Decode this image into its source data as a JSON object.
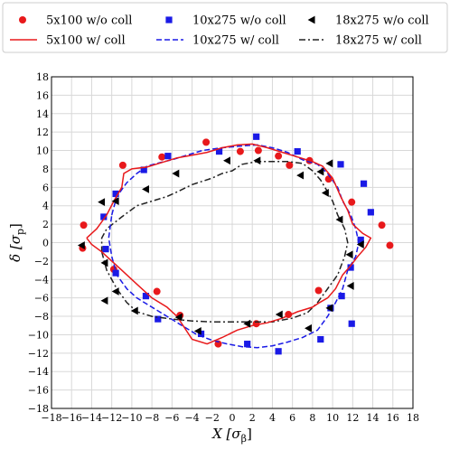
{
  "chart_data": {
    "type": "scatter",
    "xlabel": "X [σ_β]",
    "ylabel": "δ [σ_p]",
    "xlim": [
      -18,
      18
    ],
    "ylim": [
      -18,
      18
    ],
    "xticks": [
      -18,
      -16,
      -14,
      -12,
      -10,
      -8,
      -6,
      -4,
      -2,
      0,
      2,
      4,
      6,
      8,
      10,
      12,
      14,
      16,
      18
    ],
    "yticks": [
      -18,
      -16,
      -14,
      -12,
      -10,
      -8,
      -6,
      -4,
      -2,
      0,
      2,
      4,
      6,
      8,
      10,
      12,
      14,
      16,
      18
    ],
    "xlabel_parts": {
      "main": "X [σ",
      "sub": "β",
      "close": "]"
    },
    "ylabel_parts": {
      "main": "δ [σ",
      "sub": "p",
      "close": "]"
    },
    "grid": true,
    "legend": {
      "position": "top",
      "columns": 3
    },
    "series": [
      {
        "name": "5x100 w/o coll",
        "kind": "scatter",
        "marker": "circle",
        "color": "#e8191b",
        "points": [
          [
            -14.9,
            -0.6
          ],
          [
            -14.8,
            1.9
          ],
          [
            -11.8,
            -2.9
          ],
          [
            -10.9,
            8.4
          ],
          [
            -7.5,
            -5.3
          ],
          [
            -7,
            9.3
          ],
          [
            -5.2,
            -7.9
          ],
          [
            -2.6,
            10.9
          ],
          [
            -1.4,
            -11
          ],
          [
            0.8,
            9.9
          ],
          [
            2.4,
            -8.8
          ],
          [
            2.6,
            10
          ],
          [
            4.6,
            9.4
          ],
          [
            5.6,
            -7.8
          ],
          [
            5.7,
            8.4
          ],
          [
            7.7,
            8.9
          ],
          [
            8.6,
            -5.2
          ],
          [
            9.6,
            6.9
          ],
          [
            11.9,
            4.4
          ],
          [
            14.9,
            1.9
          ],
          [
            15.7,
            -0.3
          ]
        ]
      },
      {
        "name": "10x275 w/o coll",
        "kind": "scatter",
        "marker": "square",
        "color": "#1a1ae6",
        "points": [
          [
            -12.8,
            2.8
          ],
          [
            -12.6,
            -0.7
          ],
          [
            -11.6,
            5.3
          ],
          [
            -11.6,
            -3.3
          ],
          [
            -8.8,
            7.9
          ],
          [
            -8.6,
            -5.8
          ],
          [
            -6.4,
            9.4
          ],
          [
            -7.4,
            -8.3
          ],
          [
            -3.1,
            -9.9
          ],
          [
            -1.3,
            9.9
          ],
          [
            1.5,
            -11
          ],
          [
            2.4,
            11.5
          ],
          [
            4.6,
            -11.8
          ],
          [
            6.5,
            9.9
          ],
          [
            8.8,
            -10.5
          ],
          [
            9.8,
            -7.1
          ],
          [
            10.8,
            8.5
          ],
          [
            10.9,
            -5.8
          ],
          [
            11.8,
            -2.7
          ],
          [
            11.9,
            -8.8
          ],
          [
            12.8,
            0.3
          ],
          [
            13.1,
            6.4
          ],
          [
            13.8,
            3.3
          ]
        ]
      },
      {
        "name": "18x275 w/ coll",
        "kind": "line",
        "style": "dashdot",
        "color": "#222222",
        "points": [
          [
            -13,
            -1
          ],
          [
            -12.5,
            -3
          ],
          [
            -11.5,
            -5
          ],
          [
            -10.5,
            -6.5
          ],
          [
            -9.5,
            -7.5
          ],
          [
            -8,
            -8
          ],
          [
            -6,
            -8.3
          ],
          [
            -4,
            -8.5
          ],
          [
            -2,
            -8.6
          ],
          [
            0,
            -8.6
          ],
          [
            2,
            -8.6
          ],
          [
            4,
            -8.6
          ],
          [
            6,
            -8.2
          ],
          [
            7.5,
            -7.6
          ],
          [
            8.5,
            -6.5
          ],
          [
            9.5,
            -5
          ],
          [
            10.5,
            -3.5
          ],
          [
            11.2,
            -1.5
          ],
          [
            11.5,
            0
          ],
          [
            11.2,
            1.5
          ],
          [
            10.5,
            3
          ],
          [
            10,
            4.5
          ],
          [
            9.5,
            5.5
          ],
          [
            8.8,
            6.8
          ],
          [
            8,
            7.8
          ],
          [
            7,
            8.6
          ],
          [
            5.5,
            8.8
          ],
          [
            4,
            8.8
          ],
          [
            2.5,
            8.8
          ],
          [
            1,
            8.5
          ],
          [
            0,
            7.8
          ],
          [
            -1,
            7.5
          ],
          [
            -2,
            7
          ],
          [
            -4,
            6.3
          ],
          [
            -5.5,
            5.5
          ],
          [
            -6.5,
            5
          ],
          [
            -8,
            4.5
          ],
          [
            -9.5,
            4
          ],
          [
            -11,
            2.8
          ],
          [
            -12.5,
            1.5
          ],
          [
            -13,
            0.5
          ],
          [
            -13,
            -1
          ]
        ]
      },
      {
        "name": "10x275 w/ coll",
        "kind": "line",
        "style": "dashed",
        "color": "#1a1ae6",
        "points": [
          [
            -12,
            3
          ],
          [
            -11.5,
            5
          ],
          [
            -10.5,
            6.5
          ],
          [
            -9.5,
            7.5
          ],
          [
            -8.5,
            8.3
          ],
          [
            -7.5,
            8.6
          ],
          [
            -6,
            9
          ],
          [
            -4.5,
            9.5
          ],
          [
            -3,
            10
          ],
          [
            -1,
            10.3
          ],
          [
            1,
            10.5
          ],
          [
            2.5,
            10.6
          ],
          [
            4,
            10.3
          ],
          [
            5.5,
            9.8
          ],
          [
            7,
            9
          ],
          [
            8.5,
            8.5
          ],
          [
            9.5,
            7.5
          ],
          [
            10.5,
            6
          ],
          [
            11,
            4.5
          ],
          [
            11.8,
            3
          ],
          [
            12.3,
            1.5
          ],
          [
            12.6,
            0
          ],
          [
            12.3,
            -1.5
          ],
          [
            11.5,
            -3
          ],
          [
            11,
            -5
          ],
          [
            10.3,
            -6.5
          ],
          [
            9.5,
            -8
          ],
          [
            8.5,
            -9.5
          ],
          [
            7,
            -10.3
          ],
          [
            5.5,
            -10.8
          ],
          [
            4,
            -11.2
          ],
          [
            2.5,
            -11.4
          ],
          [
            1,
            -11.3
          ],
          [
            -0.5,
            -11
          ],
          [
            -2,
            -10.6
          ],
          [
            -3.5,
            -10
          ],
          [
            -5,
            -9
          ],
          [
            -6.5,
            -8
          ],
          [
            -8,
            -7
          ],
          [
            -9.5,
            -6
          ],
          [
            -10.5,
            -5
          ],
          [
            -11.5,
            -3.5
          ],
          [
            -12,
            -1.5
          ],
          [
            -12.3,
            0.5
          ],
          [
            -12,
            3
          ]
        ]
      },
      {
        "name": "5x100 w/ coll",
        "kind": "line",
        "style": "solid",
        "color": "#e8191b",
        "points": [
          [
            -14.5,
            0.5
          ],
          [
            -13.5,
            1.5
          ],
          [
            -12.5,
            3
          ],
          [
            -11.8,
            4.5
          ],
          [
            -11,
            6
          ],
          [
            -10.8,
            7.5
          ],
          [
            -10,
            8
          ],
          [
            -8.5,
            8.2
          ],
          [
            -7,
            8.7
          ],
          [
            -5.5,
            9.2
          ],
          [
            -4,
            9.5
          ],
          [
            -2.5,
            9.8
          ],
          [
            -1,
            10.3
          ],
          [
            0.5,
            10.6
          ],
          [
            2,
            10.7
          ],
          [
            3.5,
            10.3
          ],
          [
            5,
            9.8
          ],
          [
            6.5,
            9.3
          ],
          [
            8,
            8.8
          ],
          [
            9,
            8.3
          ],
          [
            10,
            7
          ],
          [
            10.8,
            5
          ],
          [
            11.5,
            3.5
          ],
          [
            12,
            2
          ],
          [
            13,
            1
          ],
          [
            13.8,
            0.5
          ],
          [
            13.3,
            -0.5
          ],
          [
            12.5,
            -1.5
          ],
          [
            11.8,
            -2.5
          ],
          [
            11,
            -3.5
          ],
          [
            10.3,
            -5
          ],
          [
            9.5,
            -6
          ],
          [
            8.7,
            -6.5
          ],
          [
            8,
            -7
          ],
          [
            6.5,
            -7.5
          ],
          [
            5,
            -8.2
          ],
          [
            3.5,
            -8.7
          ],
          [
            2,
            -9
          ],
          [
            0.5,
            -9.5
          ],
          [
            -1,
            -10.3
          ],
          [
            -2.5,
            -11
          ],
          [
            -4,
            -10.5
          ],
          [
            -5.5,
            -8
          ],
          [
            -6.5,
            -7
          ],
          [
            -8,
            -6
          ],
          [
            -9.5,
            -4.5
          ],
          [
            -11,
            -3
          ],
          [
            -12,
            -2
          ],
          [
            -13,
            -1
          ],
          [
            -14,
            -0.2
          ],
          [
            -14.5,
            0.5
          ]
        ]
      },
      {
        "name": "18x275 w/o coll",
        "kind": "scatter",
        "marker": "triangle-left",
        "color": "#000000",
        "points": [
          [
            -15,
            -0.3
          ],
          [
            -13,
            4.4
          ],
          [
            -12.7,
            -2.2
          ],
          [
            -12.7,
            -6.3
          ],
          [
            -11.6,
            4.5
          ],
          [
            -11.6,
            -5.3
          ],
          [
            -9.7,
            -7.4
          ],
          [
            -8.6,
            5.8
          ],
          [
            -5.6,
            7.5
          ],
          [
            -5.3,
            -8.1
          ],
          [
            -3.4,
            -9.6
          ],
          [
            -0.5,
            8.9
          ],
          [
            1.5,
            -8.8
          ],
          [
            2.5,
            8.9
          ],
          [
            4.7,
            -7.8
          ],
          [
            6.8,
            7.3
          ],
          [
            7.6,
            -9.3
          ],
          [
            8.8,
            7.7
          ],
          [
            9.7,
            8.6
          ],
          [
            9.3,
            5.4
          ],
          [
            9.7,
            -7.1
          ],
          [
            10.7,
            2.5
          ],
          [
            11.7,
            -1.3
          ],
          [
            11.8,
            -4.7
          ],
          [
            12.8,
            -0.2
          ]
        ]
      }
    ],
    "legend_entries": [
      {
        "label": "5x100 w/o coll",
        "marker": "circle",
        "color": "#e8191b"
      },
      {
        "label": "10x275 w/o coll",
        "marker": "square",
        "color": "#1a1ae6"
      },
      {
        "label": "18x275 w/o coll",
        "marker": "triangle-left",
        "color": "#000000"
      },
      {
        "label": "5x100 w/ coll",
        "line": "solid",
        "color": "#e8191b"
      },
      {
        "label": "10x275 w/ coll",
        "line": "dashed",
        "color": "#1a1ae6"
      },
      {
        "label": "18x275 w/ coll",
        "line": "dashdot",
        "color": "#222222"
      }
    ]
  }
}
